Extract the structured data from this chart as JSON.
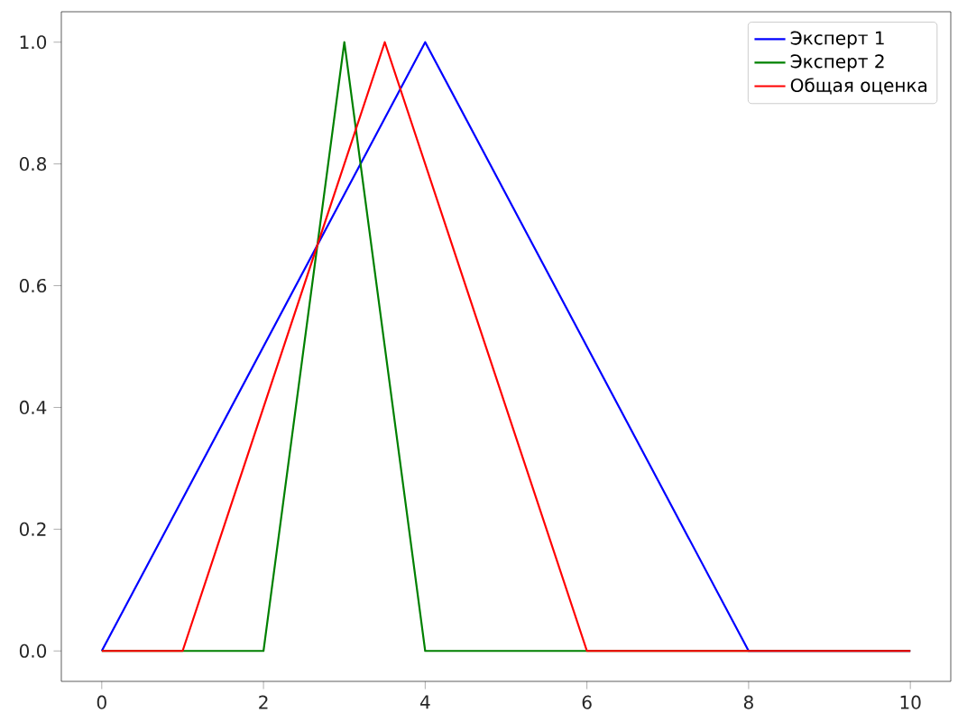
{
  "chart_data": {
    "type": "line",
    "series": [
      {
        "name": "Эксперт 1",
        "color": "#0000ff",
        "x": [
          0,
          4,
          8,
          10
        ],
        "values": [
          0,
          1,
          0,
          0
        ]
      },
      {
        "name": "Эксперт 2",
        "color": "#008000",
        "x": [
          0,
          2,
          3,
          4,
          10
        ],
        "values": [
          0,
          0,
          1,
          0,
          0
        ]
      },
      {
        "name": "Общая оценка",
        "color": "#ff0000",
        "x": [
          0,
          1,
          3.5,
          6,
          10
        ],
        "values": [
          0,
          0,
          1,
          0,
          0
        ]
      }
    ],
    "xlim": [
      -0.5,
      10.5
    ],
    "ylim": [
      -0.05,
      1.05
    ],
    "xticks": [
      0,
      2,
      4,
      6,
      8,
      10
    ],
    "yticks": [
      {
        "value": 0,
        "label": "0.0"
      },
      {
        "value": 0.2,
        "label": "0.2"
      },
      {
        "value": 0.4,
        "label": "0.4"
      },
      {
        "value": 0.6,
        "label": "0.6"
      },
      {
        "value": 0.8,
        "label": "0.8"
      },
      {
        "value": 1.0,
        "label": "1.0"
      }
    ],
    "legend": "top right",
    "marker": "none",
    "line_style": "solid",
    "grid": false
  }
}
